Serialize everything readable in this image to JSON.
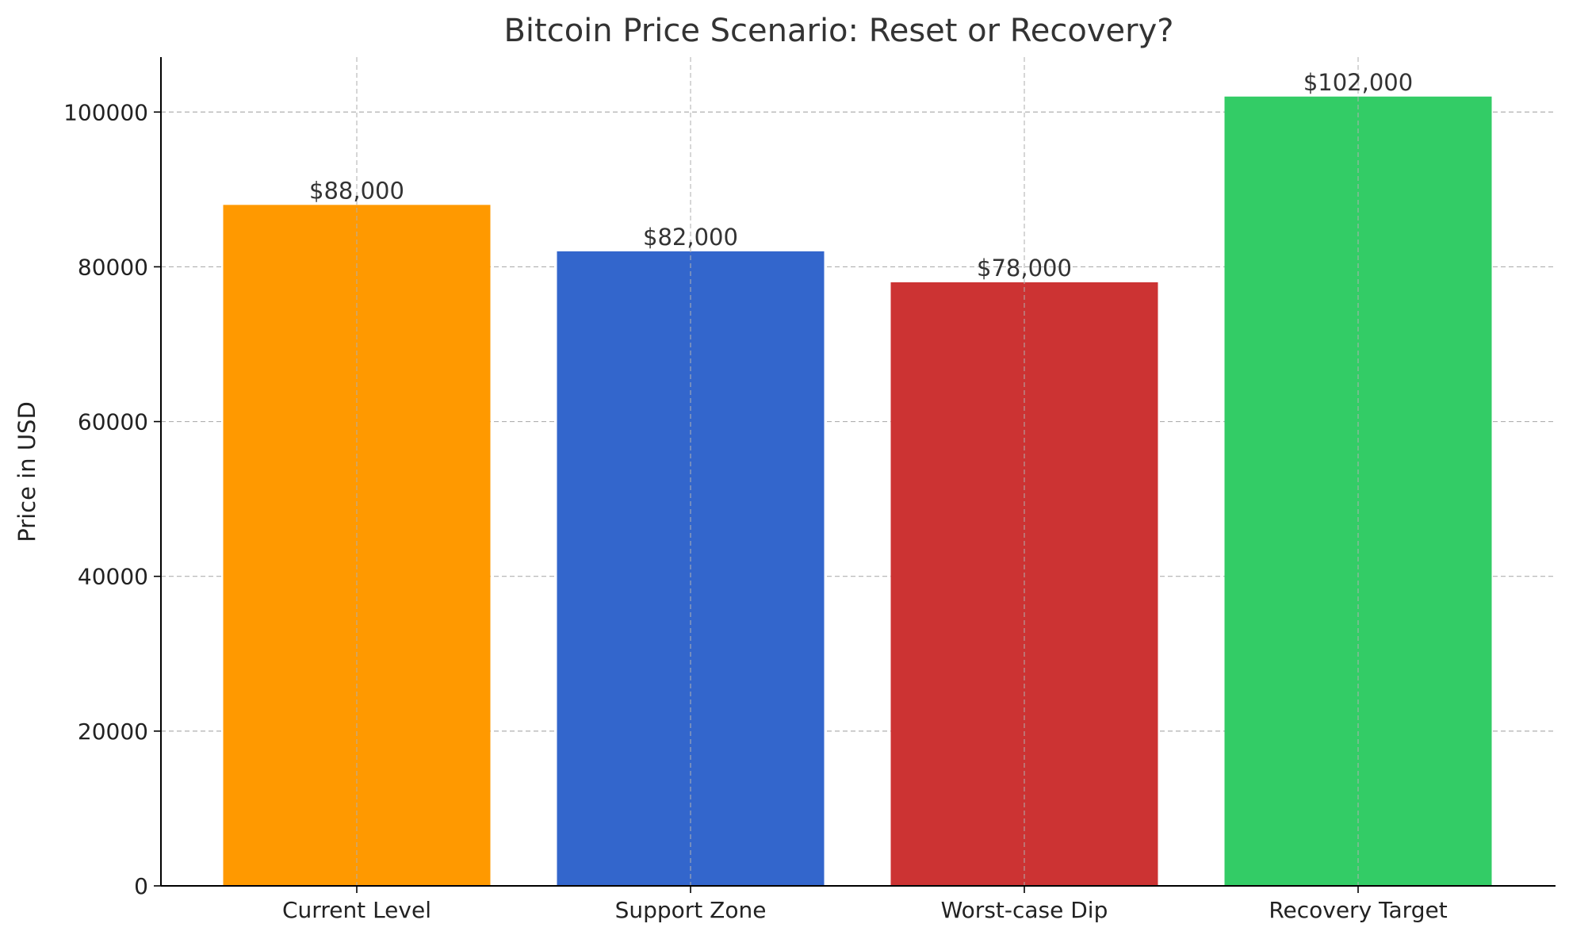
{
  "chart_data": {
    "type": "bar",
    "title": "Bitcoin Price Scenario: Reset or Recovery?",
    "xlabel": "",
    "ylabel": "Price in USD",
    "categories": [
      "Current Level",
      "Support Zone",
      "Worst-case Dip",
      "Recovery Target"
    ],
    "values": [
      88000,
      82000,
      78000,
      102000
    ],
    "value_labels": [
      "$88,000",
      "$82,000",
      "$78,000",
      "$102,000"
    ],
    "colors": [
      "#ff9900",
      "#3366cc",
      "#cc3333",
      "#33cc66"
    ],
    "ylim": [
      0,
      107100
    ],
    "yticks": [
      0,
      20000,
      40000,
      60000,
      80000,
      100000
    ],
    "ytick_labels": [
      "0",
      "20000",
      "40000",
      "60000",
      "80000",
      "100000"
    ],
    "grid": true,
    "legend": "none"
  }
}
